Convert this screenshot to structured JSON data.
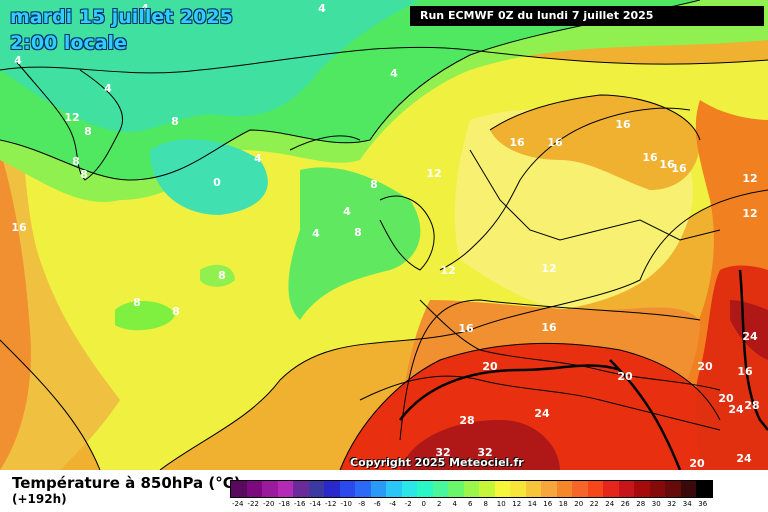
{
  "header": {
    "date": "mardi 15 juillet 2025",
    "time": "2:00 locale",
    "run": "Run ECMWF 0Z du lundi 7 juillet 2025"
  },
  "copyright": "Copyright 2025 Meteociel.fr",
  "footer": {
    "parameter": "Température à 850hPa (°C)",
    "lead_time": "(+192h)"
  },
  "legend": {
    "values": [
      "-24",
      "-22",
      "-20",
      "-18",
      "-16",
      "-14",
      "-12",
      "-10",
      "-8",
      "-6",
      "-4",
      "-2",
      "0",
      "2",
      "4",
      "6",
      "8",
      "10",
      "12",
      "14",
      "16",
      "18",
      "20",
      "22",
      "24",
      "26",
      "28",
      "30",
      "32",
      "34",
      "36"
    ],
    "colors": [
      "#5a0a5e",
      "#7a0a7e",
      "#9a1a9e",
      "#b22ab6",
      "#6a2a9a",
      "#3a3aa0",
      "#2a2acc",
      "#2a4aee",
      "#2a6af6",
      "#2a9af6",
      "#2ac6f6",
      "#2ae6e6",
      "#2af6c6",
      "#4af69a",
      "#6af66a",
      "#9af64a",
      "#c6f63a",
      "#f6f63a",
      "#f6e63a",
      "#f6c63a",
      "#f6a63a",
      "#f6862a",
      "#f6662a",
      "#f6461a",
      "#e6261a",
      "#c6161a",
      "#a60a0a",
      "#860a0a",
      "#660a0a",
      "#3a0a0a",
      "#000000"
    ]
  },
  "isotherm_labels": [
    {
      "text": "4"
    },
    {
      "text": "4"
    },
    {
      "text": "4"
    },
    {
      "text": "4"
    },
    {
      "text": "4"
    },
    {
      "text": "4"
    },
    {
      "text": "4"
    },
    {
      "text": "4"
    },
    {
      "text": "0"
    },
    {
      "text": "8"
    },
    {
      "text": "8"
    },
    {
      "text": "8"
    },
    {
      "text": "8"
    },
    {
      "text": "8"
    },
    {
      "text": "8"
    },
    {
      "text": "8"
    },
    {
      "text": "8"
    },
    {
      "text": "8"
    },
    {
      "text": "12"
    },
    {
      "text": "12"
    },
    {
      "text": "12"
    },
    {
      "text": "12"
    },
    {
      "text": "12"
    },
    {
      "text": "12"
    },
    {
      "text": "16"
    },
    {
      "text": "16"
    },
    {
      "text": "16"
    },
    {
      "text": "16"
    },
    {
      "text": "16"
    },
    {
      "text": "16"
    },
    {
      "text": "16"
    },
    {
      "text": "16"
    },
    {
      "text": "16"
    },
    {
      "text": "16"
    },
    {
      "text": "20"
    },
    {
      "text": "20"
    },
    {
      "text": "20"
    },
    {
      "text": "20"
    },
    {
      "text": "20"
    },
    {
      "text": "24"
    },
    {
      "text": "24"
    },
    {
      "text": "24"
    },
    {
      "text": "24"
    },
    {
      "text": "28"
    },
    {
      "text": "28"
    },
    {
      "text": "32"
    },
    {
      "text": "32"
    }
  ],
  "colors": {
    "cold_green": "#40e060",
    "light_green": "#80f040",
    "yellow": "#f0f040",
    "orange": "#f0b030",
    "warm_orange": "#f08020",
    "red": "#e83010",
    "dark_red": "#a01010"
  }
}
